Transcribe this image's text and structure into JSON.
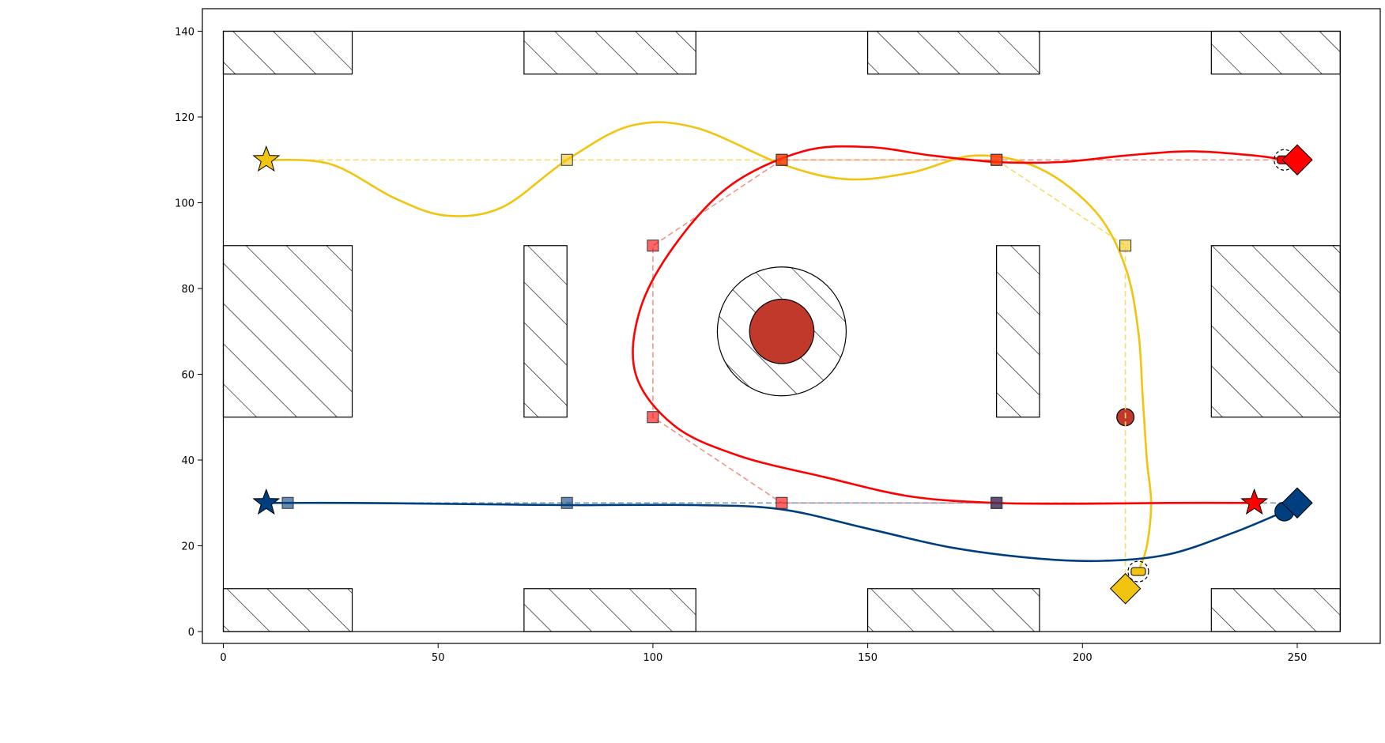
{
  "chart_data": {
    "type": "scatter",
    "title": "",
    "xlabel": "",
    "ylabel": "",
    "xlim": [
      -5,
      270
    ],
    "ylim": [
      -3,
      145
    ],
    "xticks": [
      0,
      50,
      100,
      150,
      200,
      250
    ],
    "yticks": [
      0,
      20,
      40,
      60,
      80,
      100,
      120,
      140
    ],
    "grid": false,
    "legend": "none",
    "boundary": [
      0,
      0,
      260,
      140
    ],
    "obstacles": [
      {
        "shape": "rect",
        "x0": 0,
        "y0": 130,
        "x1": 30,
        "y1": 140
      },
      {
        "shape": "rect",
        "x0": 70,
        "y0": 130,
        "x1": 110,
        "y1": 140
      },
      {
        "shape": "rect",
        "x0": 150,
        "y0": 130,
        "x1": 190,
        "y1": 140
      },
      {
        "shape": "rect",
        "x0": 230,
        "y0": 130,
        "x1": 260,
        "y1": 140
      },
      {
        "shape": "rect",
        "x0": 0,
        "y0": 50,
        "x1": 30,
        "y1": 90
      },
      {
        "shape": "rect",
        "x0": 70,
        "y0": 50,
        "x1": 80,
        "y1": 90
      },
      {
        "shape": "rect",
        "x0": 180,
        "y0": 50,
        "x1": 190,
        "y1": 90
      },
      {
        "shape": "rect",
        "x0": 230,
        "y0": 50,
        "x1": 260,
        "y1": 90
      },
      {
        "shape": "rect",
        "x0": 0,
        "y0": 0,
        "x1": 30,
        "y1": 10
      },
      {
        "shape": "rect",
        "x0": 70,
        "y0": 0,
        "x1": 110,
        "y1": 10
      },
      {
        "shape": "rect",
        "x0": 150,
        "y0": 0,
        "x1": 190,
        "y1": 10
      },
      {
        "shape": "rect",
        "x0": 230,
        "y0": 0,
        "x1": 260,
        "y1": 10
      },
      {
        "shape": "circle",
        "cx": 130,
        "cy": 70,
        "r": 15
      }
    ],
    "hazards": [
      {
        "cx": 130,
        "cy": 70,
        "r": 7.5,
        "color": "#C0392B"
      },
      {
        "cx": 210,
        "cy": 50,
        "r": 2,
        "color": "#C0392B"
      }
    ],
    "series": [
      {
        "color": "#F1C40F",
        "waypoint_color": "#F7DC6F",
        "start": [
          10,
          110
        ],
        "goal": [
          210,
          10
        ],
        "vehicle": [
          213,
          14
        ],
        "waypoints": [
          [
            10,
            110
          ],
          [
            80,
            110
          ],
          [
            130,
            110
          ],
          [
            180,
            110
          ],
          [
            210,
            90
          ],
          [
            210,
            10
          ]
        ],
        "trajectory": [
          [
            10,
            110
          ],
          [
            25,
            109
          ],
          [
            40,
            101
          ],
          [
            52,
            97
          ],
          [
            65,
            99
          ],
          [
            80,
            110
          ],
          [
            95,
            118
          ],
          [
            110,
            117.5
          ],
          [
            130,
            109
          ],
          [
            145,
            105.5
          ],
          [
            160,
            107
          ],
          [
            175,
            111
          ],
          [
            190,
            108
          ],
          [
            203,
            98
          ],
          [
            210,
            85
          ],
          [
            213,
            70
          ],
          [
            214,
            55
          ],
          [
            215,
            40
          ],
          [
            216,
            30
          ],
          [
            215,
            20
          ],
          [
            213,
            14
          ]
        ]
      },
      {
        "color": "#FF0000",
        "waypoint_color": "#F1948A",
        "start": [
          240,
          30
        ],
        "goal": [
          250,
          110
        ],
        "vehicle": [
          247,
          110
        ],
        "waypoints": [
          [
            240,
            30
          ],
          [
            180,
            30
          ],
          [
            130,
            30
          ],
          [
            100,
            50
          ],
          [
            100,
            90
          ],
          [
            130,
            110
          ],
          [
            180,
            110
          ],
          [
            250,
            110
          ]
        ],
        "trajectory": [
          [
            240,
            30
          ],
          [
            220,
            30
          ],
          [
            200,
            29.8
          ],
          [
            180,
            30
          ],
          [
            160,
            31.5
          ],
          [
            140,
            36
          ],
          [
            120,
            41
          ],
          [
            105,
            48
          ],
          [
            96,
            60
          ],
          [
            97,
            75
          ],
          [
            105,
            90
          ],
          [
            118,
            104
          ],
          [
            135,
            112
          ],
          [
            150,
            113
          ],
          [
            165,
            111
          ],
          [
            180,
            109.5
          ],
          [
            195,
            109.5
          ],
          [
            210,
            111
          ],
          [
            225,
            112
          ],
          [
            240,
            111
          ],
          [
            247,
            110
          ]
        ]
      },
      {
        "color": "#003F7F",
        "waypoint_color": "#7E9BBE",
        "start": [
          10,
          30
        ],
        "goal": [
          250,
          30
        ],
        "vehicle": [
          247,
          28
        ],
        "waypoints": [
          [
            15,
            30
          ],
          [
            80,
            30
          ],
          [
            180,
            30
          ],
          [
            250,
            30
          ]
        ],
        "trajectory": [
          [
            10,
            30
          ],
          [
            30,
            30
          ],
          [
            50,
            29.8
          ],
          [
            80,
            29.5
          ],
          [
            110,
            29.5
          ],
          [
            130,
            28.5
          ],
          [
            150,
            24
          ],
          [
            170,
            19.5
          ],
          [
            190,
            17
          ],
          [
            205,
            16.5
          ],
          [
            220,
            18
          ],
          [
            235,
            23
          ],
          [
            247,
            28
          ]
        ]
      }
    ]
  }
}
